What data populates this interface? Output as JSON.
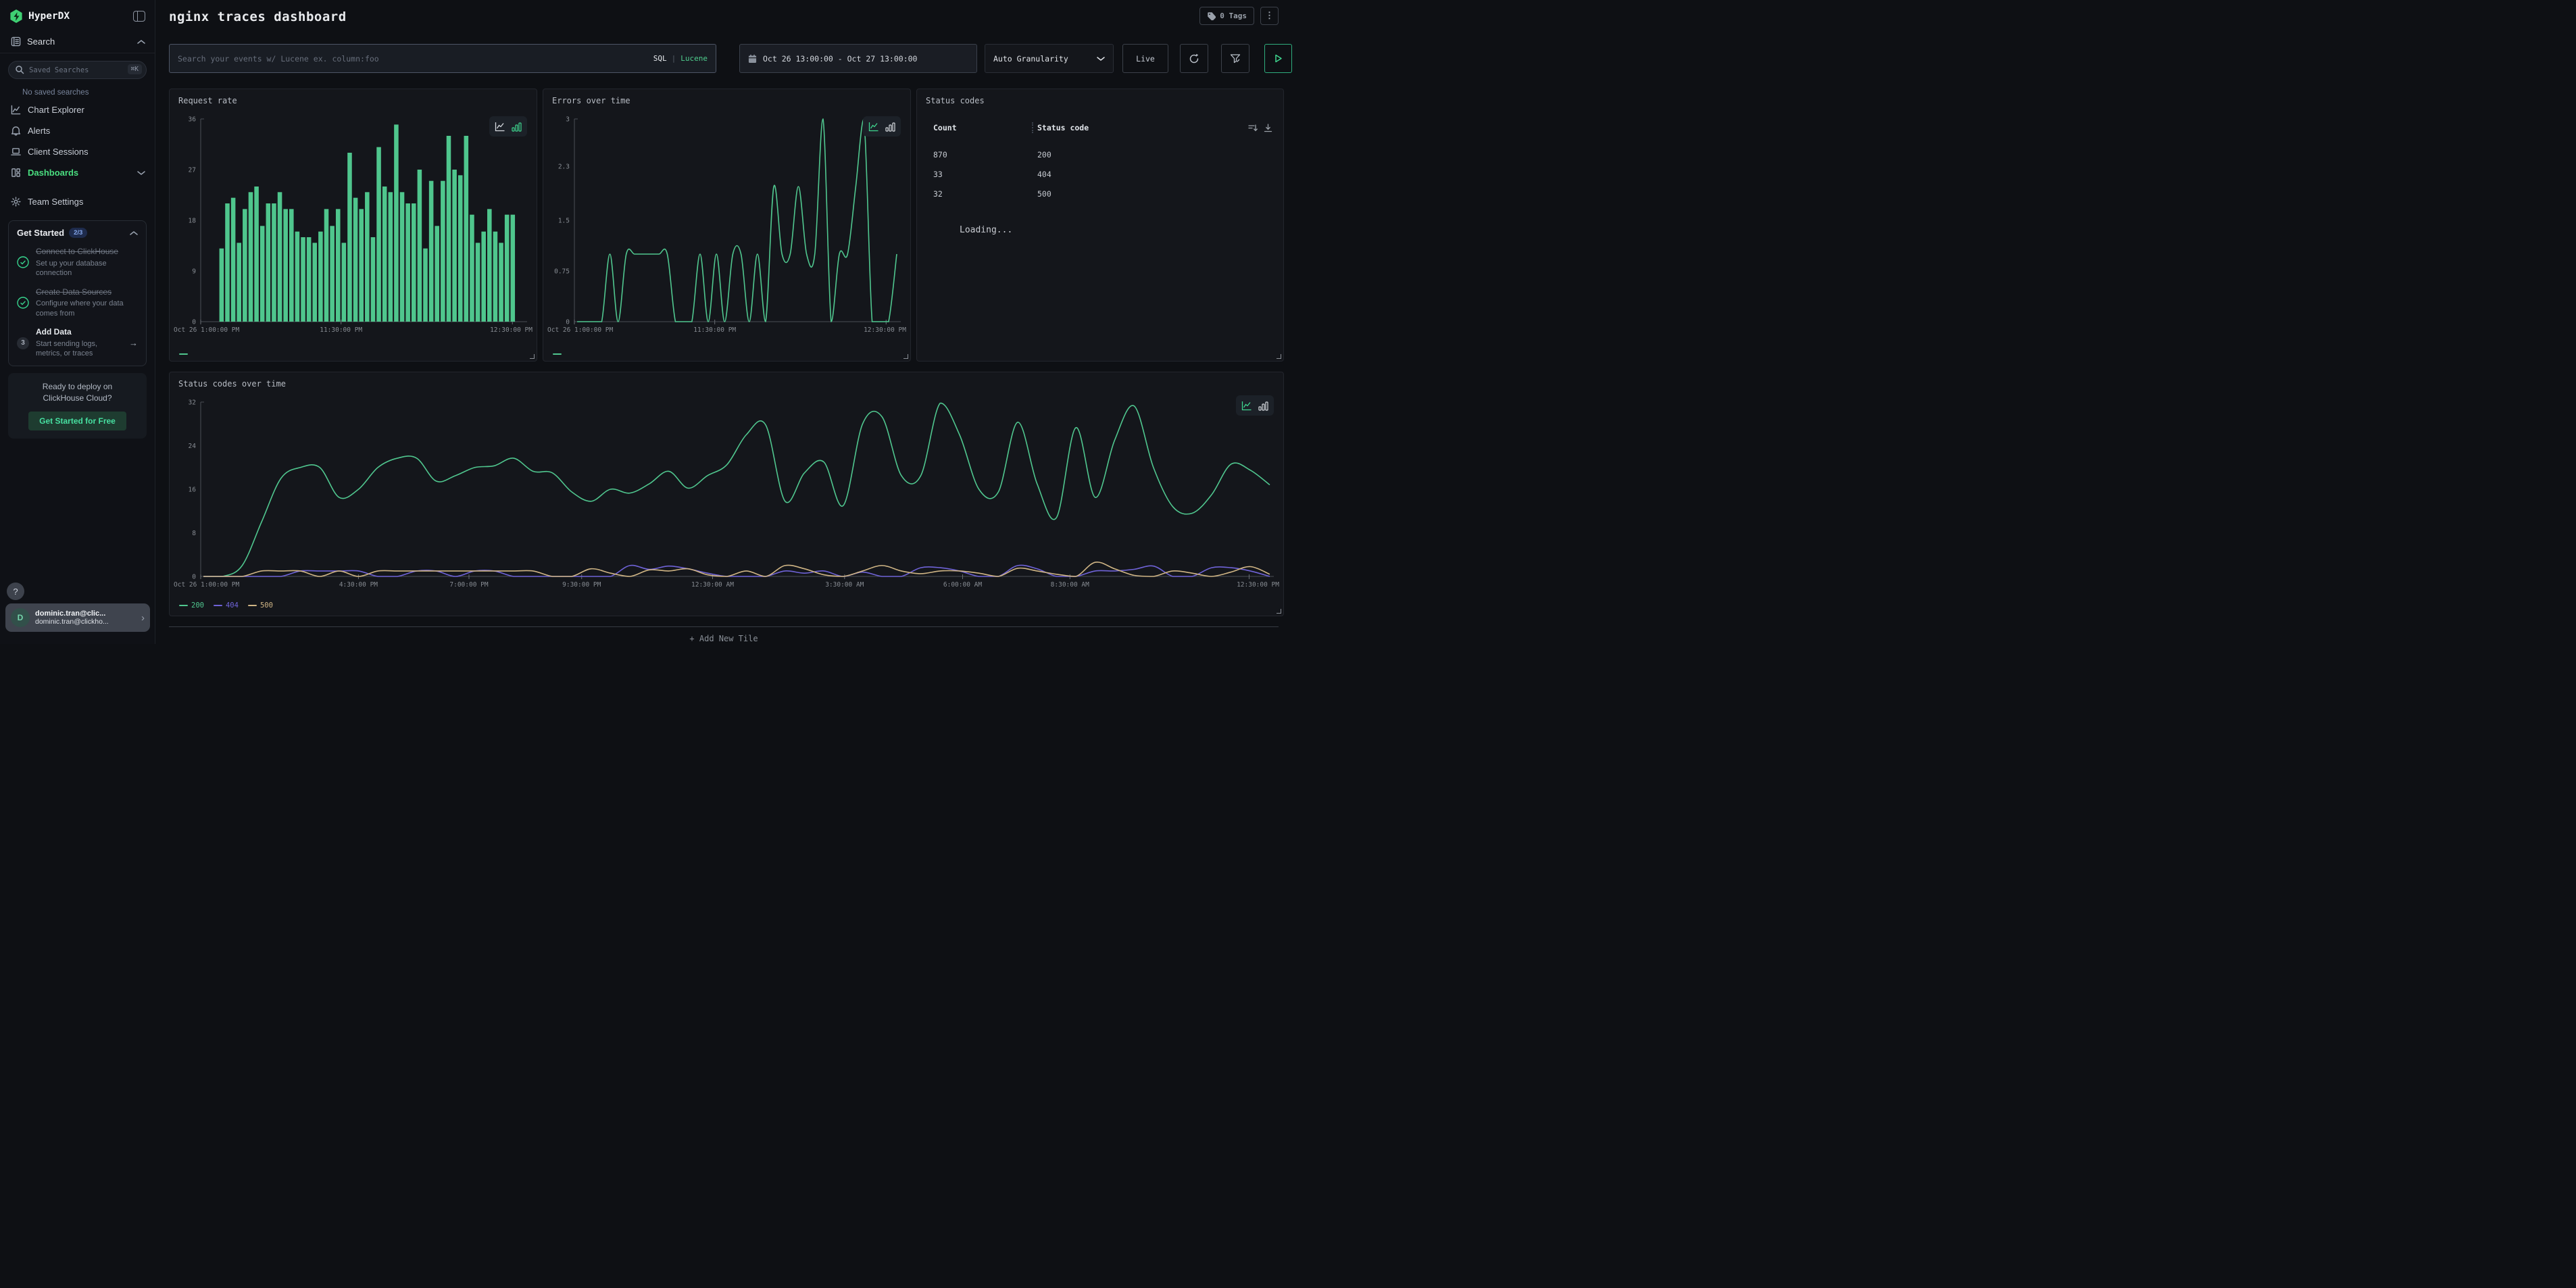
{
  "app": {
    "brand": "HyperDX"
  },
  "sidebar": {
    "search_section": "Search",
    "saved_placeholder": "Saved Searches",
    "saved_shortcut": "⌘K",
    "no_saved": "No saved searches",
    "nav": [
      {
        "label": "Chart Explorer"
      },
      {
        "label": "Alerts"
      },
      {
        "label": "Client Sessions"
      },
      {
        "label": "Dashboards"
      },
      {
        "label": "Team Settings"
      }
    ],
    "get_started": {
      "title": "Get Started",
      "badge": "2/3",
      "items": [
        {
          "title": "Connect to ClickHouse",
          "desc": "Set up your database connection"
        },
        {
          "title": "Create Data Sources",
          "desc": "Configure where your data comes from"
        },
        {
          "title": "Add Data",
          "desc": "Start sending logs, metrics, or traces",
          "step": "3",
          "arrow": "→"
        }
      ]
    },
    "deploy": {
      "line1": "Ready to deploy on",
      "line2": "ClickHouse Cloud?",
      "cta": "Get Started for Free"
    },
    "help": "?",
    "user": {
      "initial": "D",
      "name": "dominic.tran@clic...",
      "email": "dominic.tran@clickho...",
      "chevron": "›"
    }
  },
  "header": {
    "title": "nginx traces dashboard",
    "tags_label": "0 Tags",
    "kebab": "⋮"
  },
  "toolbar": {
    "search_placeholder": "Search your events w/ Lucene ex. column:foo",
    "sql": "SQL",
    "separator": "|",
    "lucene": "Lucene",
    "date_range": "Oct 26 13:00:00 - Oct 27 13:00:00",
    "granularity": "Auto Granularity",
    "live": "Live"
  },
  "add_tile": "+ Add New Tile",
  "colors": {
    "green": "#50c78f",
    "purple": "#6f63d8",
    "tan": "#d0b585",
    "accent": "#4ade80"
  },
  "chart_data": [
    {
      "type": "bar",
      "title": "Request rate",
      "color": "#4fc68d",
      "ylim": [
        0,
        36
      ],
      "y_ticks": [
        0,
        9,
        18,
        27,
        36
      ],
      "grid": false,
      "legend_pos": "bottom-left",
      "x_ticks": [
        {
          "label": "Oct 26 1:00:00 PM",
          "pos": 0.0,
          "anchor": "start"
        },
        {
          "label": "11:30:00 PM",
          "pos": 0.43,
          "anchor": "middle"
        },
        {
          "label": "12:30:00 PM",
          "pos": 0.955,
          "anchor": "end"
        }
      ],
      "span": [
        0.055,
        0.965
      ],
      "values": [
        13,
        21,
        22,
        14,
        20,
        23,
        24,
        17,
        21,
        21,
        23,
        20,
        20,
        16,
        15,
        15,
        14,
        16,
        20,
        17,
        20,
        14,
        30,
        22,
        20,
        23,
        15,
        31,
        24,
        23,
        35,
        23,
        21,
        21,
        27,
        13,
        25,
        17,
        25,
        33,
        27,
        26,
        33,
        19,
        14,
        16,
        20,
        16,
        14,
        19,
        19
      ],
      "legend": [
        {
          "label": "",
          "color": "#4fc68d"
        }
      ],
      "active_mode": "bar"
    },
    {
      "type": "line",
      "title": "Errors over time",
      "ylim": [
        0,
        3
      ],
      "y_ticks": [
        0,
        0.75,
        1.5,
        2.3,
        3
      ],
      "grid": false,
      "legend_pos": "bottom-left",
      "x_ticks": [
        {
          "label": "Oct 26 1:00:00 PM",
          "pos": 0.0,
          "anchor": "start"
        },
        {
          "label": "11:30:00 PM",
          "pos": 0.43,
          "anchor": "middle"
        },
        {
          "label": "12:30:00 PM",
          "pos": 0.955,
          "anchor": "end"
        }
      ],
      "series": [
        {
          "name": "",
          "color": "#50c78f",
          "values": [
            0,
            0,
            0,
            0,
            1,
            0,
            1,
            1,
            1,
            1,
            1,
            1,
            0,
            0,
            0,
            1,
            0,
            1,
            0,
            1,
            1,
            0,
            1,
            0,
            2,
            1,
            1,
            2,
            1,
            1,
            3,
            0,
            1,
            1,
            2,
            3,
            0,
            0,
            0,
            1
          ]
        }
      ],
      "legend": [
        {
          "label": "",
          "color": "#50c78f"
        }
      ],
      "active_mode": "line"
    },
    {
      "type": "table",
      "title": "Status codes",
      "columns": [
        "Count",
        "Status code"
      ],
      "rows": [
        [
          "870",
          "200"
        ],
        [
          "33",
          "404"
        ],
        [
          "32",
          "500"
        ]
      ],
      "status_text": "Loading..."
    },
    {
      "type": "line",
      "title": "Status codes over time",
      "ylim": [
        0,
        32
      ],
      "y_ticks": [
        0,
        8,
        16,
        24,
        32
      ],
      "grid": false,
      "legend_pos": "bottom-left",
      "x_ticks": [
        {
          "label": "Oct 26 1:00:00 PM",
          "pos": 0.0,
          "anchor": "start"
        },
        {
          "label": "4:30:00 PM",
          "pos": 0.147,
          "anchor": "middle"
        },
        {
          "label": "7:00:00 PM",
          "pos": 0.25,
          "anchor": "middle"
        },
        {
          "label": "9:30:00 PM",
          "pos": 0.355,
          "anchor": "middle"
        },
        {
          "label": "12:30:00 AM",
          "pos": 0.477,
          "anchor": "middle"
        },
        {
          "label": "3:30:00 AM",
          "pos": 0.6,
          "anchor": "middle"
        },
        {
          "label": "6:00:00 AM",
          "pos": 0.71,
          "anchor": "middle"
        },
        {
          "label": "8:30:00 AM",
          "pos": 0.81,
          "anchor": "middle"
        },
        {
          "label": "12:30:00 PM",
          "pos": 0.977,
          "anchor": "end"
        }
      ],
      "series": [
        {
          "name": "200",
          "color": "#50c78f",
          "values": [
            0,
            0,
            2,
            10,
            18,
            20,
            20,
            14.5,
            16,
            20,
            21.7,
            21.7,
            17.5,
            18.5,
            20,
            20.3,
            21.7,
            19.3,
            19,
            15.5,
            13.8,
            16,
            15.3,
            17,
            19.3,
            16.2,
            18.5,
            20.5,
            26,
            27.8,
            13.8,
            19,
            21,
            13,
            28,
            29.3,
            18.5,
            18.5,
            31.8,
            26,
            16,
            15.5,
            28.3,
            17,
            10.8,
            27.3,
            14.5,
            25,
            31.3,
            20,
            12.8,
            11.6,
            15,
            20.6,
            19.5,
            16.8
          ]
        },
        {
          "name": "404",
          "color": "#6f63d8",
          "values": [
            0,
            0,
            0,
            0,
            0,
            1,
            1,
            1,
            1,
            0,
            0,
            1,
            1,
            0,
            1,
            1,
            0,
            0,
            0,
            0,
            0,
            0,
            2,
            1.3,
            1.9,
            1.4,
            0.6,
            0,
            0,
            0,
            1,
            0.6,
            1,
            0,
            0.8,
            0,
            0,
            1.6,
            1.6,
            1,
            0,
            0,
            2,
            1.4,
            0,
            0,
            1,
            1,
            1.3,
            1.9,
            0,
            0,
            1.6,
            1.6,
            1,
            0
          ]
        },
        {
          "name": "500",
          "color": "#d0b585",
          "values": [
            0,
            0,
            0,
            1,
            1,
            1,
            0,
            1,
            0,
            1,
            1,
            1,
            1,
            1,
            1,
            1,
            1,
            1,
            0,
            0,
            1.4,
            0.6,
            0,
            1.2,
            1,
            1.4,
            0.3,
            0,
            1,
            0,
            2,
            1.4,
            0.3,
            0,
            1,
            2,
            1,
            0.5,
            1,
            1,
            0.6,
            0,
            1.5,
            1,
            0.4,
            0,
            2.6,
            1.4,
            0.2,
            0,
            1,
            0.6,
            0,
            0.8,
            1.8,
            0.4
          ]
        }
      ],
      "legend": [
        {
          "label": "200",
          "color": "#50c78f"
        },
        {
          "label": "404",
          "color": "#6f63d8"
        },
        {
          "label": "500",
          "color": "#d0b585"
        }
      ],
      "active_mode": "line"
    }
  ]
}
